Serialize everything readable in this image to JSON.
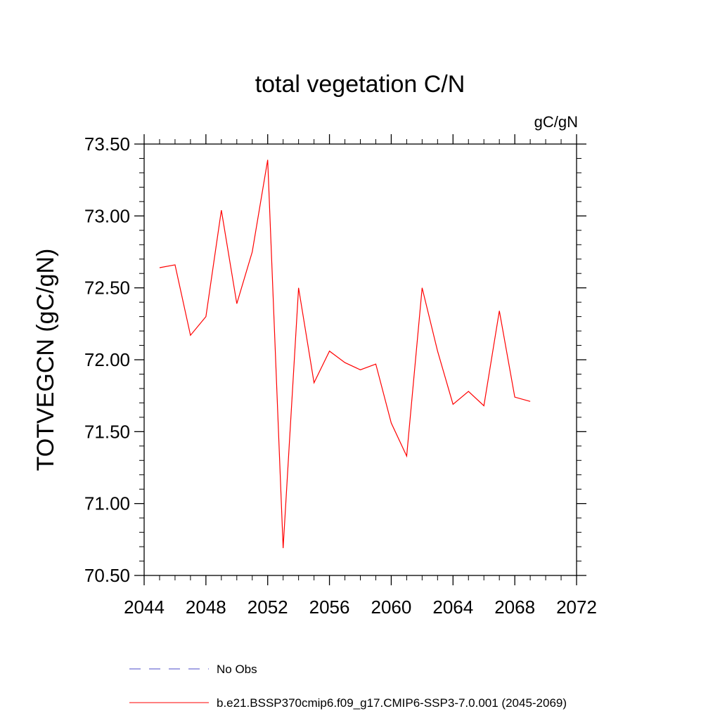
{
  "chart_data": {
    "type": "line",
    "title": "total vegetation C/N",
    "units_label": "gC/gN",
    "ylabel": "TOTVEGCN  (gC/gN)",
    "xlabel": "",
    "xlim": [
      2044,
      2072
    ],
    "ylim": [
      70.5,
      73.5
    ],
    "x_ticks": [
      "2044",
      "2048",
      "2052",
      "2056",
      "2060",
      "2064",
      "2068",
      "2072"
    ],
    "y_ticks": [
      "70.50",
      "71.00",
      "71.50",
      "72.00",
      "72.50",
      "73.00",
      "73.50"
    ],
    "grid": false,
    "legend_position": "bottom",
    "series": [
      {
        "name": "No Obs",
        "color": "#4b4bc8",
        "style": "dashed",
        "x": [],
        "y": []
      },
      {
        "name": "b.e21.BSSP370cmip6.f09_g17.CMIP6-SSP3-7.0.001 (2045-2069)",
        "color": "#ff0000",
        "style": "solid",
        "x": [
          2045,
          2046,
          2047,
          2048,
          2049,
          2050,
          2051,
          2052,
          2053,
          2054,
          2055,
          2056,
          2057,
          2058,
          2059,
          2060,
          2061,
          2062,
          2063,
          2064,
          2065,
          2066,
          2067,
          2068,
          2069
        ],
        "y": [
          72.64,
          72.66,
          72.17,
          72.3,
          73.04,
          72.39,
          72.75,
          73.39,
          70.69,
          72.5,
          71.84,
          72.06,
          71.98,
          71.93,
          71.97,
          71.56,
          71.33,
          72.5,
          72.06,
          71.69,
          71.78,
          71.68,
          72.34,
          71.74,
          71.71
        ]
      }
    ]
  }
}
